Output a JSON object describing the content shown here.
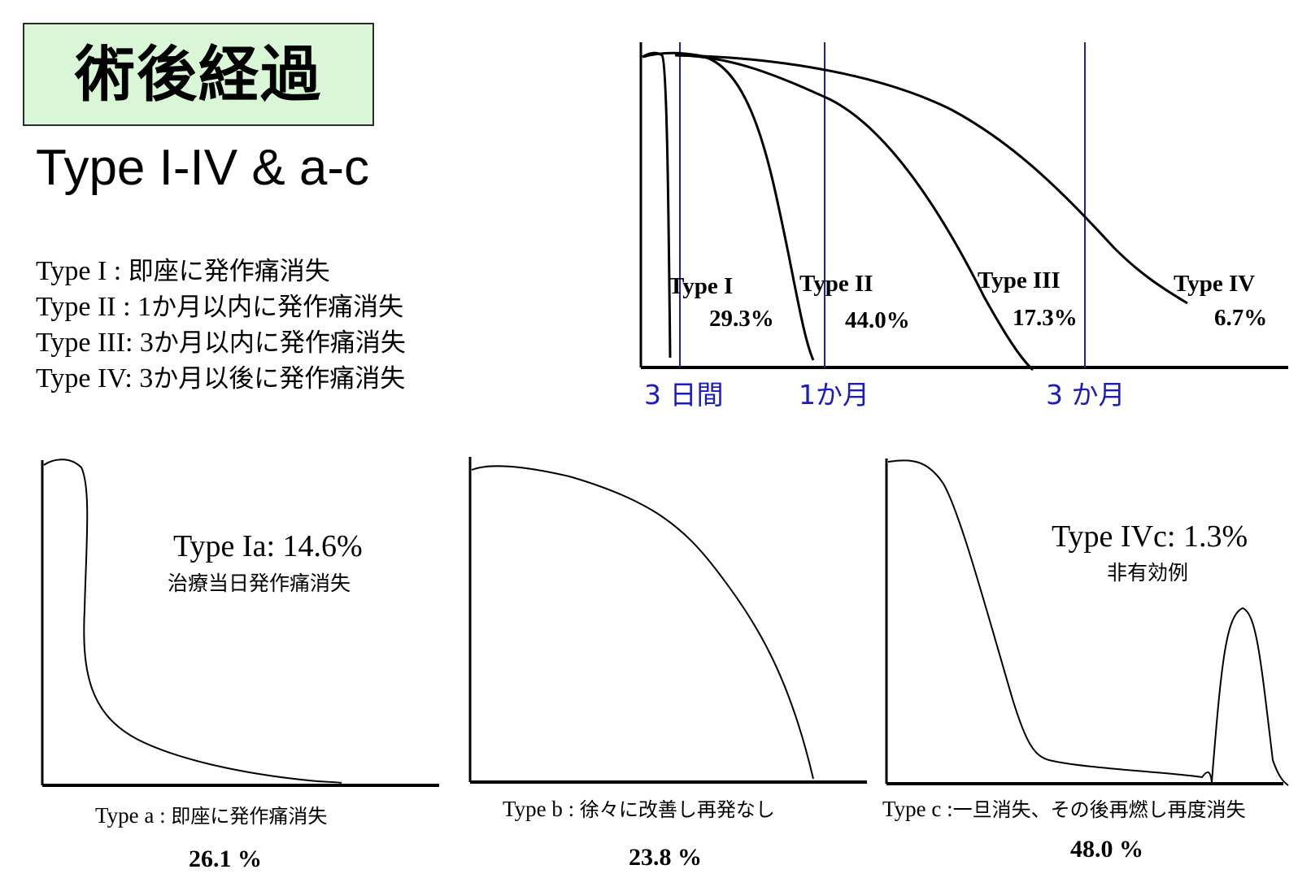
{
  "title": "術後経過",
  "subtitle": "Type I-IV & a-c",
  "type_definitions": [
    {
      "label": "Type I  : ",
      "desc": "即座に発作痛消失"
    },
    {
      "label": "Type II : 1",
      "desc": "か月以内に発作痛消失"
    },
    {
      "label": "Type III: 3",
      "desc": "か月以内に発作痛消失"
    },
    {
      "label": "Type IV: 3",
      "desc": "か月以後に発作痛消失"
    }
  ],
  "colors": {
    "marker": "#1a1ac8",
    "title_bg": "#d9f7d6",
    "curve": "#000000"
  },
  "chart_data": [
    {
      "type": "line",
      "x_markers": [
        "3 日間",
        "1か月",
        "3 か月"
      ],
      "series": [
        {
          "name": "Type I",
          "percent": "29.3%"
        },
        {
          "name": "Type II",
          "percent": "44.0%"
        },
        {
          "name": "Type III",
          "percent": "17.3%"
        },
        {
          "name": "Type IV",
          "percent": "6.7%"
        }
      ]
    },
    {
      "type": "line",
      "title": "Type Ia: 14.6%",
      "note": "治療当日発作痛消失",
      "caption_label": "Type a : ",
      "caption_desc": "即座に発作痛消失",
      "percent": "26.1 %"
    },
    {
      "type": "line",
      "caption_label": "Type b : ",
      "caption_desc": "徐々に改善し再発なし",
      "percent": "23.8 %"
    },
    {
      "type": "line",
      "title": "Type IVc: 1.3%",
      "note": "非有効例",
      "caption_label": "Type c :",
      "caption_desc": "一旦消失、その後再燃し再度消失",
      "percent": "48.0 %"
    }
  ]
}
